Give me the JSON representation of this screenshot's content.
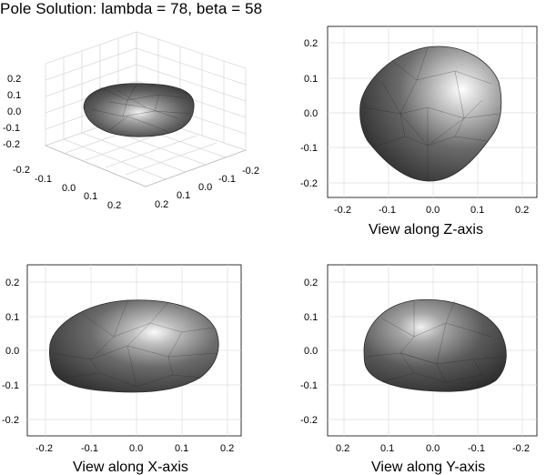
{
  "title": "Pole Solution:  lambda  = 78, beta = 58",
  "panels": {
    "iso": {
      "z_ticks": [
        "0.2",
        "0.1",
        "0.0",
        "-0.1",
        "-0.2"
      ],
      "x_ticks": [
        "-0.2",
        "-0.1",
        "0.0",
        "0.1",
        "0.2"
      ],
      "y_ticks": [
        "-0.2",
        "-0.1",
        "0.0",
        "0.1",
        "0.2"
      ]
    },
    "z_view": {
      "xlabel": "View along Z-axis",
      "x_ticks": [
        "-0.2",
        "-0.1",
        "0.0",
        "0.1",
        "0.2"
      ],
      "y_ticks": [
        "0.2",
        "0.1",
        "0.0",
        "-0.1",
        "-0.2"
      ]
    },
    "x_view": {
      "xlabel": "View along X-axis",
      "x_ticks": [
        "-0.2",
        "-0.1",
        "0.0",
        "0.1",
        "0.2"
      ],
      "y_ticks": [
        "0.2",
        "0.1",
        "0.0",
        "-0.1",
        "-0.2"
      ]
    },
    "y_view": {
      "xlabel": "View along Y-axis",
      "x_ticks": [
        "0.2",
        "0.1",
        "0.0",
        "-0.1",
        "-0.2"
      ],
      "y_ticks": [
        "0.2",
        "0.1",
        "0.0",
        "-0.1",
        "-0.2"
      ]
    }
  },
  "colors": {
    "grid": "#d9d9d9",
    "body_dark": "#3a3a3a",
    "body_mid": "#6e6e6e",
    "highlight": "#f4f4f4"
  }
}
